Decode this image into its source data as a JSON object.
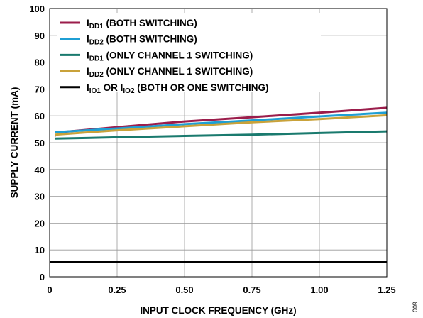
{
  "chart_data": {
    "type": "line",
    "xlabel": "INPUT CLOCK FREQUENCY (GHz)",
    "ylabel": "SUPPLY CURRENT (mA)",
    "xlim": [
      0,
      1.25
    ],
    "ylim": [
      0,
      100
    ],
    "x_ticks": [
      "0",
      "0.25",
      "0.50",
      "0.75",
      "1.00",
      "1.25"
    ],
    "y_ticks": [
      "0",
      "10",
      "20",
      "30",
      "40",
      "50",
      "60",
      "70",
      "80",
      "90",
      "100"
    ],
    "grid": true,
    "legend_position": "top-left",
    "series": [
      {
        "name": "I_DD1 (BOTH SWITCHING)",
        "color": "#9b1d4b",
        "x": [
          0.02,
          0.05,
          0.25,
          0.5,
          0.75,
          1.0,
          1.25
        ],
        "y": [
          52.6,
          54.0,
          55.8,
          57.9,
          59.5,
          61.2,
          63.0
        ]
      },
      {
        "name": "I_DD2 (BOTH SWITCHING)",
        "color": "#1f9fd4",
        "x": [
          0.02,
          0.25,
          0.5,
          0.75,
          1.0,
          1.25
        ],
        "y": [
          53.9,
          55.3,
          56.9,
          58.3,
          59.8,
          61.2
        ]
      },
      {
        "name": "I_DD1 (ONLY CHANNEL 1 SWITCHING)",
        "color": "#1a7a6e",
        "x": [
          0.02,
          0.25,
          0.5,
          0.75,
          1.0,
          1.25
        ],
        "y": [
          51.5,
          52.0,
          52.5,
          53.0,
          53.6,
          54.2
        ]
      },
      {
        "name": "I_DD2 (ONLY CHANNEL 1 SWITCHING)",
        "color": "#c9a23a",
        "x": [
          0.02,
          0.25,
          0.5,
          0.75,
          1.0,
          1.25
        ],
        "y": [
          53.0,
          54.6,
          56.1,
          57.6,
          58.8,
          60.2
        ]
      },
      {
        "name": "I_IO1 OR I_IO2 (BOTH OR ONE SWITCHING)",
        "color": "#000000",
        "x": [
          0.0,
          1.25
        ],
        "y": [
          5.5,
          5.5
        ]
      }
    ],
    "legend": [
      {
        "main": "I",
        "sub": "DD1",
        "rest": " (BOTH SWITCHING)",
        "color": "#9b1d4b"
      },
      {
        "main": "I",
        "sub": "DD2",
        "rest": " (BOTH SWITCHING)",
        "color": "#1f9fd4"
      },
      {
        "main": "I",
        "sub": "DD1",
        "rest": " (ONLY CHANNEL 1 SWITCHING)",
        "color": "#1a7a6e"
      },
      {
        "main": "I",
        "sub": "DD2",
        "rest": " (ONLY CHANNEL 1 SWITCHING)",
        "color": "#c9a23a"
      },
      {
        "main": "I",
        "sub": "IO1",
        "rest": " OR I",
        "sub2": "IO2",
        "rest2": " (BOTH OR ONE SWITCHING)",
        "color": "#000000"
      }
    ],
    "figure_number": "009"
  }
}
